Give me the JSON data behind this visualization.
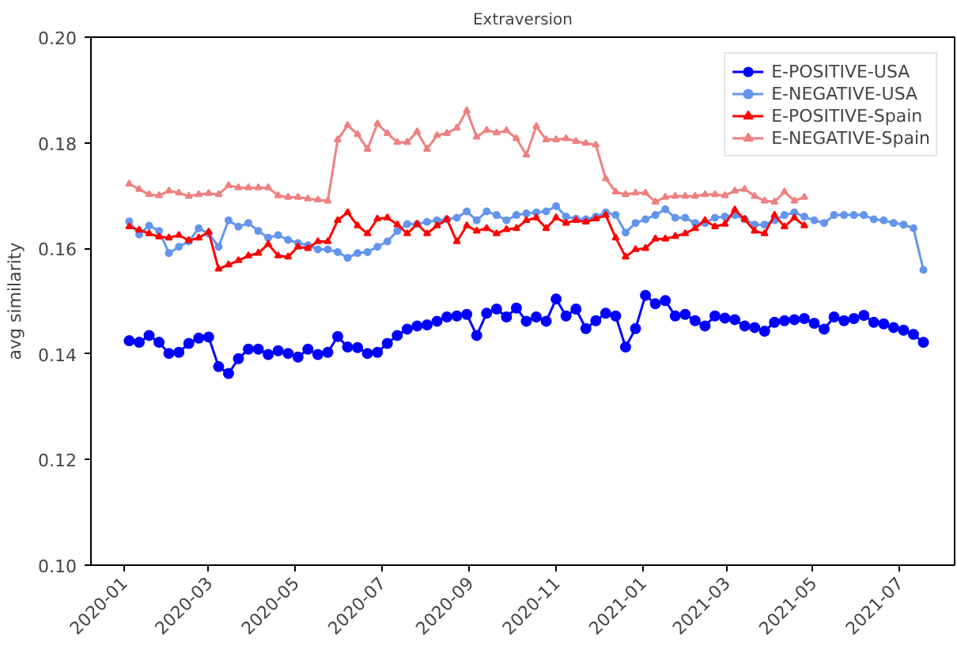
{
  "chart_data": {
    "type": "line",
    "title": "Extraversion",
    "ylabel": "avg similarity",
    "x": [
      "2020-01-05",
      "2020-01-12",
      "2020-01-19",
      "2020-01-26",
      "2020-02-02",
      "2020-02-09",
      "2020-02-16",
      "2020-02-23",
      "2020-03-01",
      "2020-03-08",
      "2020-03-15",
      "2020-03-22",
      "2020-03-29",
      "2020-04-05",
      "2020-04-12",
      "2020-04-19",
      "2020-04-26",
      "2020-05-03",
      "2020-05-10",
      "2020-05-17",
      "2020-05-24",
      "2020-05-31",
      "2020-06-07",
      "2020-06-14",
      "2020-06-21",
      "2020-06-28",
      "2020-07-05",
      "2020-07-12",
      "2020-07-19",
      "2020-07-26",
      "2020-08-02",
      "2020-08-09",
      "2020-08-16",
      "2020-08-23",
      "2020-08-30",
      "2020-09-06",
      "2020-09-13",
      "2020-09-20",
      "2020-09-27",
      "2020-10-04",
      "2020-10-11",
      "2020-10-18",
      "2020-10-25",
      "2020-11-01",
      "2020-11-08",
      "2020-11-15",
      "2020-11-22",
      "2020-11-29",
      "2020-12-06",
      "2020-12-13",
      "2020-12-20",
      "2020-12-27",
      "2021-01-03",
      "2021-01-10",
      "2021-01-17",
      "2021-01-24",
      "2021-01-31",
      "2021-02-07",
      "2021-02-14",
      "2021-02-21",
      "2021-02-28",
      "2021-03-07",
      "2021-03-14",
      "2021-03-21",
      "2021-03-28",
      "2021-04-04",
      "2021-04-11",
      "2021-04-18",
      "2021-04-25",
      "2021-05-02",
      "2021-05-09",
      "2021-05-16",
      "2021-05-23",
      "2021-05-30",
      "2021-06-06",
      "2021-06-13",
      "2021-06-20",
      "2021-06-27",
      "2021-07-04",
      "2021-07-11",
      "2021-07-18"
    ],
    "series": [
      {
        "name": "E-POSITIVE-USA",
        "color": "#0000ff",
        "marker": "circle",
        "values": [
          0.1425,
          0.1422,
          0.1435,
          0.1422,
          0.1401,
          0.1403,
          0.142,
          0.143,
          0.1432,
          0.1376,
          0.1363,
          0.1391,
          0.1409,
          0.1409,
          0.1399,
          0.1406,
          0.1401,
          0.1394,
          0.1409,
          0.1399,
          0.1403,
          0.1433,
          0.1413,
          0.1412,
          0.1401,
          0.1403,
          0.142,
          0.1435,
          0.1447,
          0.1453,
          0.1455,
          0.1462,
          0.147,
          0.1472,
          0.1475,
          0.1435,
          0.1477,
          0.1485,
          0.147,
          0.1487,
          0.1462,
          0.147,
          0.1462,
          0.1504,
          0.1472,
          0.1485,
          0.1448,
          0.1463,
          0.1477,
          0.1472,
          0.1413,
          0.1448,
          0.1511,
          0.1495,
          0.1501,
          0.1472,
          0.1475,
          0.1463,
          0.1453,
          0.1472,
          0.1468,
          0.1465,
          0.1453,
          0.145,
          0.1443,
          0.146,
          0.1463,
          0.1465,
          0.1467,
          0.1458,
          0.1447,
          0.147,
          0.1463,
          0.1467,
          0.1473,
          0.146,
          0.1457,
          0.145,
          0.1445,
          0.1437,
          0.1422
        ]
      },
      {
        "name": "E-NEGATIVE-USA",
        "color": "#6495ed",
        "marker": "circle",
        "values": [
          0.1651,
          0.1626,
          0.1643,
          0.1633,
          0.1591,
          0.1603,
          0.1613,
          0.1638,
          0.1628,
          0.1603,
          0.1653,
          0.1641,
          0.1648,
          0.1633,
          0.162,
          0.1625,
          0.1616,
          0.161,
          0.1606,
          0.1598,
          0.1598,
          0.1593,
          0.1582,
          0.1591,
          0.1593,
          0.1603,
          0.1613,
          0.1633,
          0.1646,
          0.1646,
          0.165,
          0.1653,
          0.1655,
          0.1658,
          0.167,
          0.1653,
          0.167,
          0.1663,
          0.1653,
          0.1663,
          0.1666,
          0.1668,
          0.167,
          0.168,
          0.166,
          0.1656,
          0.1655,
          0.166,
          0.1668,
          0.1663,
          0.163,
          0.1648,
          0.1655,
          0.1663,
          0.1674,
          0.1658,
          0.1658,
          0.1648,
          0.1648,
          0.1658,
          0.166,
          0.1663,
          0.1655,
          0.1645,
          0.1645,
          0.1653,
          0.1663,
          0.1668,
          0.166,
          0.1653,
          0.1648,
          0.1663,
          0.1663,
          0.1663,
          0.1663,
          0.1655,
          0.1653,
          0.1648,
          0.1645,
          0.1638,
          0.1559
        ]
      },
      {
        "name": "E-POSITIVE-Spain",
        "color": "#ff0000",
        "marker": "triangle",
        "values": [
          0.1641,
          0.1635,
          0.1628,
          0.1622,
          0.162,
          0.1625,
          0.1615,
          0.162,
          0.1631,
          0.1561,
          0.1569,
          0.1577,
          0.1586,
          0.1591,
          0.1608,
          0.1586,
          0.1584,
          0.1603,
          0.16,
          0.1613,
          0.1613,
          0.1653,
          0.1668,
          0.1643,
          0.1628,
          0.1656,
          0.1658,
          0.1645,
          0.1628,
          0.1646,
          0.1628,
          0.1643,
          0.1655,
          0.1613,
          0.1643,
          0.1633,
          0.1638,
          0.1628,
          0.1636,
          0.1638,
          0.1653,
          0.1658,
          0.1638,
          0.1658,
          0.1648,
          0.1653,
          0.165,
          0.1656,
          0.1663,
          0.162,
          0.1584,
          0.1598,
          0.16,
          0.1618,
          0.1618,
          0.1623,
          0.1628,
          0.1638,
          0.1653,
          0.1641,
          0.1646,
          0.1673,
          0.1655,
          0.1633,
          0.1628,
          0.1663,
          0.1641,
          0.1658,
          0.1643,
          null,
          null,
          null,
          null,
          null,
          null,
          null,
          null,
          null,
          null,
          null,
          null
        ]
      },
      {
        "name": "E-NEGATIVE-Spain",
        "color": "#f08080",
        "marker": "triangle",
        "values": [
          0.1722,
          0.1712,
          0.1702,
          0.17,
          0.1709,
          0.1705,
          0.1699,
          0.1702,
          0.1704,
          0.1702,
          0.1719,
          0.1715,
          0.1715,
          0.1715,
          0.1715,
          0.17,
          0.1697,
          0.1697,
          0.1694,
          0.1692,
          0.169,
          0.1806,
          0.1833,
          0.1816,
          0.1788,
          0.1836,
          0.1818,
          0.1801,
          0.1801,
          0.1821,
          0.1788,
          0.1814,
          0.1818,
          0.1828,
          0.1861,
          0.1811,
          0.1824,
          0.1819,
          0.1823,
          0.1808,
          0.1777,
          0.1831,
          0.1806,
          0.1806,
          0.1808,
          0.1803,
          0.1799,
          0.1796,
          0.1732,
          0.1707,
          0.1702,
          0.1705,
          0.1705,
          0.1688,
          0.1697,
          0.1699,
          0.1699,
          0.1699,
          0.1702,
          0.1702,
          0.17,
          0.1709,
          0.1712,
          0.1699,
          0.169,
          0.1688,
          0.1707,
          0.169,
          0.1697,
          null,
          null,
          null,
          null,
          null,
          null,
          null,
          null,
          null,
          null,
          null,
          null
        ]
      }
    ],
    "xlim": [
      "2019-12-09",
      "2021-08-09"
    ],
    "xticks": [
      {
        "value": "2020-01-01",
        "label": "2020-01"
      },
      {
        "value": "2020-03-01",
        "label": "2020-03"
      },
      {
        "value": "2020-05-01",
        "label": "2020-05"
      },
      {
        "value": "2020-07-01",
        "label": "2020-07"
      },
      {
        "value": "2020-09-01",
        "label": "2020-09"
      },
      {
        "value": "2020-11-01",
        "label": "2020-11"
      },
      {
        "value": "2021-01-01",
        "label": "2021-01"
      },
      {
        "value": "2021-03-01",
        "label": "2021-03"
      },
      {
        "value": "2021-05-01",
        "label": "2021-05"
      },
      {
        "value": "2021-07-01",
        "label": "2021-07"
      }
    ],
    "ylim": [
      0.1,
      0.2
    ],
    "yticks": [
      {
        "value": 0.1,
        "label": "0.10"
      },
      {
        "value": 0.12,
        "label": "0.12"
      },
      {
        "value": 0.14,
        "label": "0.14"
      },
      {
        "value": 0.16,
        "label": "0.16"
      },
      {
        "value": 0.18,
        "label": "0.18"
      },
      {
        "value": 0.2,
        "label": "0.20"
      }
    ],
    "grid": false,
    "legend": "top right",
    "line_style": "solid"
  }
}
